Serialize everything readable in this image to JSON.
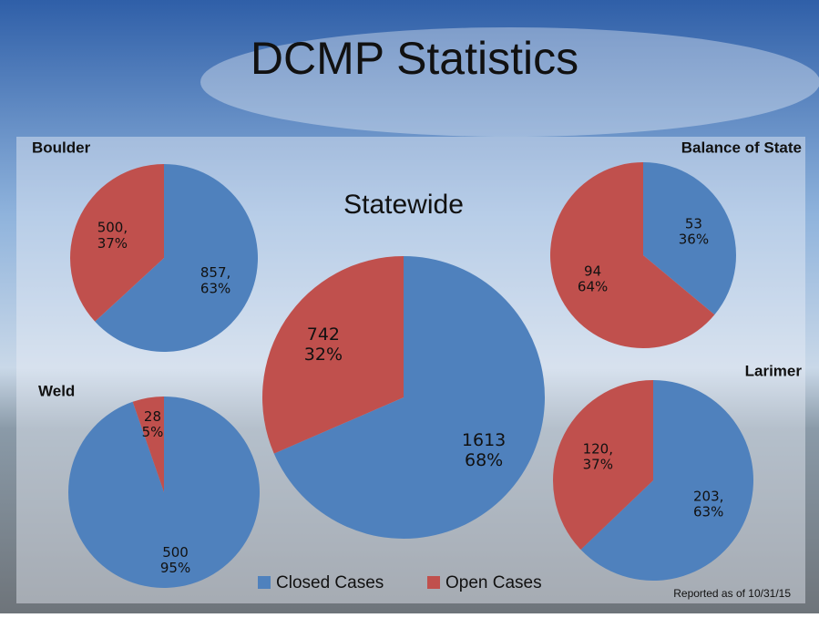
{
  "title": "DCMP Statistics",
  "footnote": "Reported as of 10/31/15",
  "legend": [
    "Closed Cases",
    "Open Cases"
  ],
  "chart_data": [
    {
      "type": "pie",
      "title": "Boulder",
      "categories": [
        "Closed Cases",
        "Open Cases"
      ],
      "values": [
        857,
        500
      ],
      "value_labels": [
        "857,\n63%",
        "500,\n37%"
      ],
      "colors": [
        "#4f81bd",
        "#c0504d"
      ]
    },
    {
      "type": "pie",
      "title": "Balance of State",
      "categories": [
        "Closed Cases",
        "Open Cases"
      ],
      "values": [
        53,
        94
      ],
      "value_labels": [
        "53\n36%",
        "94\n64%"
      ],
      "colors": [
        "#4f81bd",
        "#c0504d"
      ]
    },
    {
      "type": "pie",
      "title": "Statewide",
      "categories": [
        "Closed Cases",
        "Open Cases"
      ],
      "values": [
        1613,
        742
      ],
      "value_labels": [
        "1613\n68%",
        "742\n32%"
      ],
      "colors": [
        "#4f81bd",
        "#c0504d"
      ]
    },
    {
      "type": "pie",
      "title": "Weld",
      "categories": [
        "Closed Cases",
        "Open Cases"
      ],
      "values": [
        500,
        28
      ],
      "value_labels": [
        "500\n95%",
        "28\n5%"
      ],
      "colors": [
        "#4f81bd",
        "#c0504d"
      ]
    },
    {
      "type": "pie",
      "title": "Larimer",
      "categories": [
        "Closed Cases",
        "Open Cases"
      ],
      "values": [
        203,
        120
      ],
      "value_labels": [
        "203,\n63%",
        "120,\n37%"
      ],
      "colors": [
        "#4f81bd",
        "#c0504d"
      ]
    }
  ]
}
